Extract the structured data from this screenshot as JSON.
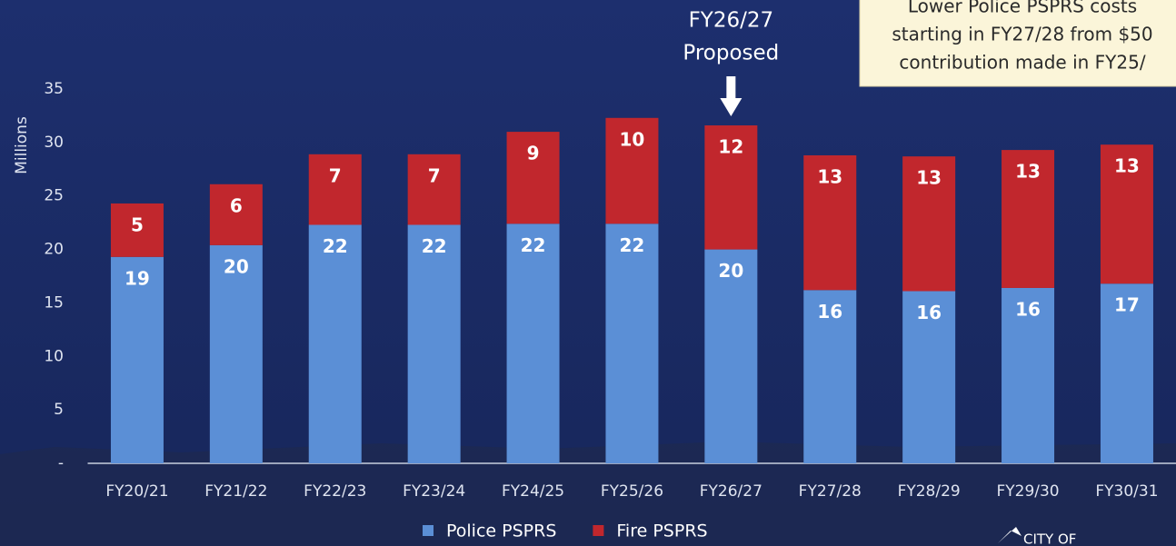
{
  "chart_data": {
    "type": "stacked_bar",
    "y_axis_label": "Millions",
    "categories": [
      "FY20/21",
      "FY21/22",
      "FY22/23",
      "FY23/24",
      "FY24/25",
      "FY25/26",
      "FY26/27",
      "FY27/28",
      "FY28/29",
      "FY29/30",
      "FY30/31"
    ],
    "series": [
      {
        "name": "Police PSPRS",
        "color": "#5b8fd6",
        "values": [
          19.3,
          20.4,
          22.3,
          22.3,
          22.4,
          22.4,
          20.0,
          16.2,
          16.1,
          16.4,
          16.8
        ],
        "value_labels": [
          "19",
          "20",
          "22",
          "22",
          "22",
          "22",
          "20",
          "16",
          "16",
          "16",
          "17"
        ]
      },
      {
        "name": "Fire PSPRS",
        "color": "#c1272d",
        "values": [
          5.0,
          5.7,
          6.6,
          6.6,
          8.6,
          9.9,
          11.6,
          12.6,
          12.6,
          12.9,
          13.0
        ],
        "value_labels": [
          "5",
          "6",
          "7",
          "7",
          "9",
          "10",
          "12",
          "13",
          "13",
          "13",
          "13"
        ]
      }
    ],
    "ylim": [
      0,
      35
    ],
    "yticks": [
      {
        "value": 0,
        "label": "-"
      },
      5,
      10,
      15,
      20,
      25,
      30,
      35
    ],
    "legend": "bottom",
    "annotations": [
      {
        "text_lines": [
          "FY26/27",
          "Proposed"
        ],
        "category": 6
      },
      {
        "text_lines": [
          "Lower Police PSPRS costs",
          "starting in FY27/28 from $50",
          "contribution made in FY25/"
        ]
      }
    ],
    "logo": "CITY OF"
  }
}
